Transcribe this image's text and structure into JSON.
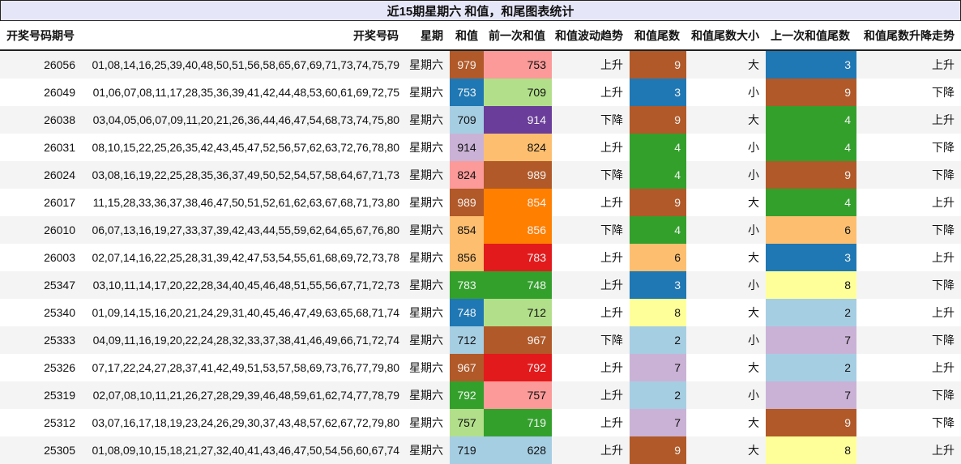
{
  "title": "近15期星期六 和值，和尾图表统计",
  "columns": [
    "开奖号码期号",
    "开奖号码",
    "星期",
    "和值",
    "前一次和值",
    "和值波动趋势",
    "和值尾数",
    "和值尾数大小",
    "上一次和值尾数",
    "和值尾数升降走势"
  ],
  "palette": {
    "brown": "#b15928",
    "pink": "#fb9a99",
    "blue": "#1f78b4",
    "lightgreen": "#b2df8a",
    "lightblue": "#a6cee3",
    "purple": "#6a3d9a",
    "lavender": "#cab2d6",
    "peach": "#fdbf6f",
    "orange": "#ff7f00",
    "red": "#e31a1c",
    "green": "#33a02c",
    "yellow": "#ffff99"
  },
  "rows": [
    {
      "issue": "26056",
      "numbers": "01,08,14,16,25,39,40,48,50,51,56,58,65,67,69,71,73,74,75,79",
      "weekday": "星期六",
      "sum": "979",
      "sum_color": "brown",
      "prev_sum": "753",
      "prev_color": "pink",
      "trend": "上升",
      "tail": "9",
      "tail_color": "brown",
      "size": "大",
      "last_tail": "3",
      "last_tail_color": "blue",
      "tail_trend": "上升"
    },
    {
      "issue": "26049",
      "numbers": "01,06,07,08,11,17,28,35,36,39,41,42,44,48,53,60,61,69,72,75",
      "weekday": "星期六",
      "sum": "753",
      "sum_color": "blue",
      "prev_sum": "709",
      "prev_color": "lightgreen",
      "trend": "上升",
      "tail": "3",
      "tail_color": "blue",
      "size": "小",
      "last_tail": "9",
      "last_tail_color": "brown",
      "tail_trend": "下降"
    },
    {
      "issue": "26038",
      "numbers": "03,04,05,06,07,09,11,20,21,26,36,44,46,47,54,68,73,74,75,80",
      "weekday": "星期六",
      "sum": "709",
      "sum_color": "lightblue",
      "prev_sum": "914",
      "prev_color": "purple",
      "trend": "下降",
      "tail": "9",
      "tail_color": "brown",
      "size": "大",
      "last_tail": "4",
      "last_tail_color": "green",
      "tail_trend": "上升"
    },
    {
      "issue": "26031",
      "numbers": "08,10,15,22,25,26,35,42,43,45,47,52,56,57,62,63,72,76,78,80",
      "weekday": "星期六",
      "sum": "914",
      "sum_color": "lavender",
      "prev_sum": "824",
      "prev_color": "peach",
      "trend": "上升",
      "tail": "4",
      "tail_color": "green",
      "size": "小",
      "last_tail": "4",
      "last_tail_color": "green",
      "tail_trend": "下降"
    },
    {
      "issue": "26024",
      "numbers": "03,08,16,19,22,25,28,35,36,37,49,50,52,54,57,58,64,67,71,73",
      "weekday": "星期六",
      "sum": "824",
      "sum_color": "pink",
      "prev_sum": "989",
      "prev_color": "brown",
      "trend": "下降",
      "tail": "4",
      "tail_color": "green",
      "size": "小",
      "last_tail": "9",
      "last_tail_color": "brown",
      "tail_trend": "下降"
    },
    {
      "issue": "26017",
      "numbers": "11,15,28,33,36,37,38,46,47,50,51,52,61,62,63,67,68,71,73,80",
      "weekday": "星期六",
      "sum": "989",
      "sum_color": "brown",
      "prev_sum": "854",
      "prev_color": "orange",
      "trend": "上升",
      "tail": "9",
      "tail_color": "brown",
      "size": "大",
      "last_tail": "4",
      "last_tail_color": "green",
      "tail_trend": "上升"
    },
    {
      "issue": "26010",
      "numbers": "06,07,13,16,19,27,33,37,39,42,43,44,55,59,62,64,65,67,76,80",
      "weekday": "星期六",
      "sum": "854",
      "sum_color": "peach",
      "prev_sum": "856",
      "prev_color": "orange",
      "trend": "下降",
      "tail": "4",
      "tail_color": "green",
      "size": "小",
      "last_tail": "6",
      "last_tail_color": "peach",
      "tail_trend": "下降"
    },
    {
      "issue": "26003",
      "numbers": "02,07,14,16,22,25,28,31,39,42,47,53,54,55,61,68,69,72,73,78",
      "weekday": "星期六",
      "sum": "856",
      "sum_color": "peach",
      "prev_sum": "783",
      "prev_color": "red",
      "trend": "上升",
      "tail": "6",
      "tail_color": "peach",
      "size": "大",
      "last_tail": "3",
      "last_tail_color": "blue",
      "tail_trend": "上升"
    },
    {
      "issue": "25347",
      "numbers": "03,10,11,14,17,20,22,28,34,40,45,46,48,51,55,56,67,71,72,73",
      "weekday": "星期六",
      "sum": "783",
      "sum_color": "green",
      "prev_sum": "748",
      "prev_color": "green",
      "trend": "上升",
      "tail": "3",
      "tail_color": "blue",
      "size": "小",
      "last_tail": "8",
      "last_tail_color": "yellow",
      "tail_trend": "下降"
    },
    {
      "issue": "25340",
      "numbers": "01,09,14,15,16,20,21,24,29,31,40,45,46,47,49,63,65,68,71,74",
      "weekday": "星期六",
      "sum": "748",
      "sum_color": "blue",
      "prev_sum": "712",
      "prev_color": "lightgreen",
      "trend": "上升",
      "tail": "8",
      "tail_color": "yellow",
      "size": "大",
      "last_tail": "2",
      "last_tail_color": "lightblue",
      "tail_trend": "上升"
    },
    {
      "issue": "25333",
      "numbers": "04,09,11,16,19,20,22,24,28,32,33,37,38,41,46,49,66,71,72,74",
      "weekday": "星期六",
      "sum": "712",
      "sum_color": "lightblue",
      "prev_sum": "967",
      "prev_color": "brown",
      "trend": "下降",
      "tail": "2",
      "tail_color": "lightblue",
      "size": "小",
      "last_tail": "7",
      "last_tail_color": "lavender",
      "tail_trend": "下降"
    },
    {
      "issue": "25326",
      "numbers": "07,17,22,24,27,28,37,41,42,49,51,53,57,58,69,73,76,77,79,80",
      "weekday": "星期六",
      "sum": "967",
      "sum_color": "brown",
      "prev_sum": "792",
      "prev_color": "red",
      "trend": "上升",
      "tail": "7",
      "tail_color": "lavender",
      "size": "大",
      "last_tail": "2",
      "last_tail_color": "lightblue",
      "tail_trend": "上升"
    },
    {
      "issue": "25319",
      "numbers": "02,07,08,10,11,21,26,27,28,29,39,46,48,59,61,62,74,77,78,79",
      "weekday": "星期六",
      "sum": "792",
      "sum_color": "green",
      "prev_sum": "757",
      "prev_color": "pink",
      "trend": "上升",
      "tail": "2",
      "tail_color": "lightblue",
      "size": "小",
      "last_tail": "7",
      "last_tail_color": "lavender",
      "tail_trend": "下降"
    },
    {
      "issue": "25312",
      "numbers": "03,07,16,17,18,19,23,24,26,29,30,37,43,48,57,62,67,72,79,80",
      "weekday": "星期六",
      "sum": "757",
      "sum_color": "lightgreen",
      "prev_sum": "719",
      "prev_color": "green",
      "trend": "上升",
      "tail": "7",
      "tail_color": "lavender",
      "size": "大",
      "last_tail": "9",
      "last_tail_color": "brown",
      "tail_trend": "下降"
    },
    {
      "issue": "25305",
      "numbers": "01,08,09,10,15,18,21,27,32,40,41,43,46,47,50,54,56,60,67,74",
      "weekday": "星期六",
      "sum": "719",
      "sum_color": "lightblue",
      "prev_sum": "628",
      "prev_color": "lightblue",
      "trend": "上升",
      "tail": "9",
      "tail_color": "brown",
      "size": "大",
      "last_tail": "8",
      "last_tail_color": "yellow",
      "tail_trend": "上升"
    }
  ]
}
